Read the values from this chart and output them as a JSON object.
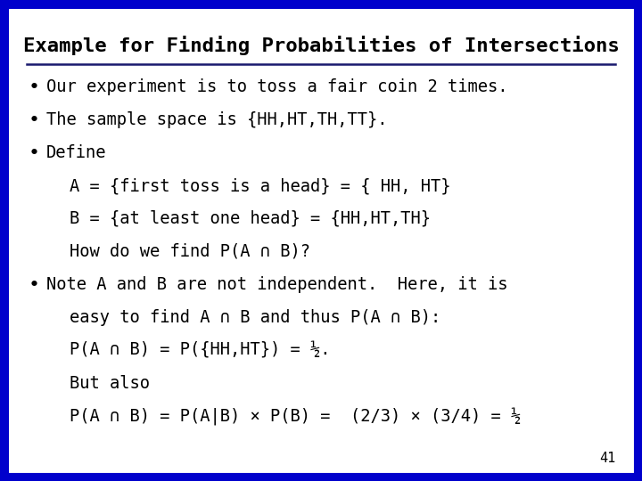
{
  "title": "Example for Finding Probabilities of Intersections",
  "background_color": "#ffffff",
  "border_color": "#0000cc",
  "border_linewidth": 8,
  "title_fontsize": 16,
  "body_fontsize": 13.5,
  "slide_number": "41",
  "lines": [
    {
      "bullet": true,
      "indent": 0,
      "text": "Our experiment is to toss a fair coin 2 times."
    },
    {
      "bullet": true,
      "indent": 0,
      "text": "The sample space is {HH,HT,TH,TT}."
    },
    {
      "bullet": true,
      "indent": 0,
      "text": "Define"
    },
    {
      "bullet": false,
      "indent": 1,
      "text": "A = {first toss is a head} = { HH, HT}"
    },
    {
      "bullet": false,
      "indent": 1,
      "text": "B = {at least one head} = {HH,HT,TH}"
    },
    {
      "bullet": false,
      "indent": 1,
      "text": "How do we find P(A ∩ B)?"
    },
    {
      "bullet": true,
      "indent": 0,
      "text": "Note A and B are not independent.  Here, it is"
    },
    {
      "bullet": false,
      "indent": 1,
      "text": "easy to find A ∩ B and thus P(A ∩ B):"
    },
    {
      "bullet": false,
      "indent": 1,
      "text": "P(A ∩ B) = P({HH,HT}) = ½."
    },
    {
      "bullet": false,
      "indent": 1,
      "text": "But also"
    },
    {
      "bullet": false,
      "indent": 1,
      "text": "P(A ∩ B) = P(A|B) × P(B) =  (2/3) × (3/4) = ½"
    }
  ]
}
